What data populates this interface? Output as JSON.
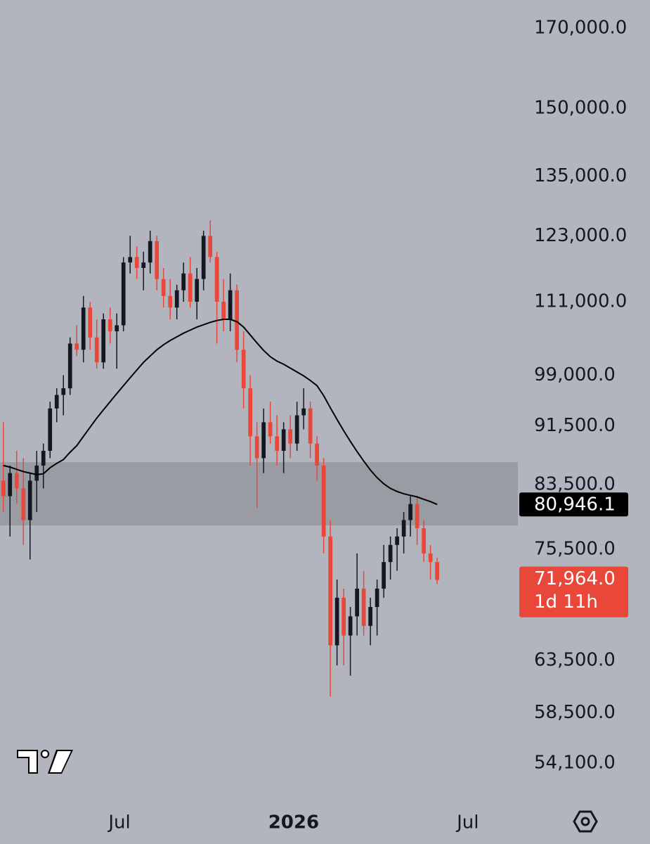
{
  "chart_data": {
    "type": "candlestick",
    "log_scale": true,
    "background": "#b2b5bd",
    "up_color": "#131722",
    "down_color": "#e8473a",
    "ma_color": "#000000",
    "zone_color": "#9a9ca4",
    "xlim": [
      -0.5,
      77.1
    ],
    "xticks": [
      {
        "value": 17.4,
        "label": "Jul"
      },
      {
        "value": 43.5,
        "label": "2026"
      },
      {
        "value": 69.6,
        "label": "Jul"
      }
    ],
    "ylim": [
      51500,
      177600
    ],
    "yticks": [
      {
        "value": 54100,
        "label": "54,100.0"
      },
      {
        "value": 58500,
        "label": "58,500.0"
      },
      {
        "value": 63500,
        "label": "63,500.0"
      },
      {
        "value": 75500,
        "label": "75,500.0"
      },
      {
        "value": 83500,
        "label": "83,500.0"
      },
      {
        "value": 91500,
        "label": "91,500.0"
      },
      {
        "value": 99000,
        "label": "99,000.0"
      },
      {
        "value": 111000,
        "label": "111,000.0"
      },
      {
        "value": 123000,
        "label": "123,000.0"
      },
      {
        "value": 135000,
        "label": "135,000.0"
      },
      {
        "value": 150000,
        "label": "150,000.0"
      },
      {
        "value": 170000,
        "label": "170,000.0"
      }
    ],
    "zone": [
      78350,
      86460
    ],
    "open": [
      84000,
      82000,
      85000,
      83000,
      79000,
      84000,
      86000,
      88000,
      94000,
      96000,
      97000,
      104000,
      103000,
      110000,
      105000,
      101000,
      108000,
      106000,
      107000,
      118000,
      119000,
      117000,
      118000,
      122000,
      115000,
      112000,
      110000,
      113000,
      116000,
      111000,
      115000,
      123000,
      119000,
      111000,
      108000,
      113000,
      103000,
      97000,
      90000,
      87000,
      92000,
      90000,
      88000,
      91000,
      89000,
      93000,
      94000,
      89000,
      86000,
      77000,
      65000,
      70000,
      66000,
      68000,
      71000,
      67000,
      69000,
      71000,
      74000,
      76000,
      77000,
      79000,
      81000,
      78000,
      75000,
      74000
    ],
    "high": [
      92000,
      86000,
      88000,
      87000,
      85000,
      88000,
      89000,
      95000,
      97000,
      99000,
      105000,
      107000,
      112000,
      111000,
      108000,
      109000,
      110000,
      109000,
      119000,
      123000,
      121000,
      120000,
      124000,
      123000,
      117000,
      115000,
      114000,
      118000,
      119000,
      117000,
      124000,
      126000,
      120000,
      115000,
      116000,
      114000,
      106000,
      99000,
      92000,
      94000,
      95000,
      93000,
      92000,
      93000,
      95000,
      97000,
      95000,
      90000,
      87000,
      79000,
      72000,
      71000,
      69000,
      75000,
      73000,
      70000,
      72000,
      76000,
      77000,
      78000,
      80000,
      82000,
      82000,
      79000,
      76000,
      74500
    ],
    "low": [
      80000,
      77000,
      81000,
      76000,
      74300,
      80000,
      83000,
      87000,
      92000,
      93000,
      96000,
      102000,
      101000,
      103000,
      100000,
      100000,
      104000,
      100000,
      106000,
      116000,
      115000,
      113000,
      116000,
      113000,
      110000,
      108000,
      108000,
      111000,
      110000,
      108000,
      113000,
      118000,
      104000,
      106000,
      106000,
      101000,
      94000,
      86000,
      80500,
      85000,
      89000,
      86000,
      85000,
      87000,
      88000,
      91000,
      87000,
      84000,
      75000,
      60000,
      63000,
      63000,
      62000,
      66000,
      66000,
      65000,
      66000,
      70000,
      72000,
      73000,
      75000,
      77000,
      76000,
      74000,
      72000,
      71500
    ],
    "close": [
      82000,
      85000,
      83000,
      79000,
      84000,
      86000,
      88000,
      94000,
      96000,
      97000,
      104000,
      103000,
      110000,
      105000,
      101000,
      108000,
      106000,
      107000,
      118000,
      119000,
      117000,
      118000,
      122000,
      115000,
      112000,
      110000,
      113000,
      116000,
      111000,
      115000,
      123000,
      119000,
      111000,
      108000,
      113000,
      103000,
      97000,
      90000,
      87000,
      92000,
      90000,
      88000,
      91000,
      89000,
      93000,
      94000,
      89000,
      86000,
      77000,
      65000,
      70000,
      66000,
      68000,
      71000,
      67000,
      69000,
      71000,
      74000,
      76000,
      77000,
      79000,
      81000,
      78000,
      75000,
      74000,
      71964
    ],
    "ma": [
      86000,
      85800,
      85500,
      85200,
      85000,
      84800,
      84900,
      85700,
      86300,
      86800,
      87800,
      88700,
      90000,
      91300,
      92600,
      93800,
      95000,
      96200,
      97400,
      98600,
      99800,
      101000,
      102000,
      103000,
      103800,
      104500,
      105100,
      105700,
      106200,
      106700,
      107100,
      107500,
      107800,
      108000,
      108000,
      107600,
      106700,
      105400,
      104100,
      102900,
      101900,
      101200,
      100700,
      100100,
      99500,
      98900,
      98200,
      97400,
      95900,
      94100,
      92400,
      90800,
      89300,
      87900,
      86600,
      85400,
      84400,
      83600,
      83000,
      82600,
      82300,
      82100,
      81900,
      81600,
      81300,
      80946.1
    ],
    "price_tags": [
      {
        "value": 80946.1,
        "label": "80,946.1",
        "color": "#000000"
      },
      {
        "value": 71964,
        "label": "71,964.0",
        "timer": "1d 11h",
        "color": "#e8473a"
      }
    ]
  }
}
